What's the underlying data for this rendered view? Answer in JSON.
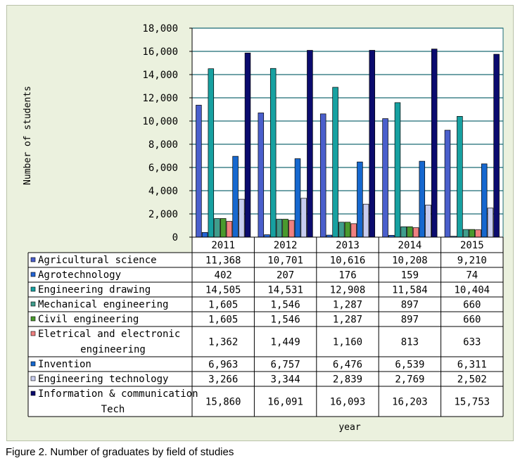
{
  "caption": "Figure 2. Number of graduates by field of studies",
  "chart_data": {
    "type": "bar",
    "title": "",
    "xlabel": "year",
    "ylabel": "Number of students",
    "ylim": [
      0,
      18000
    ],
    "yticks": [
      0,
      2000,
      4000,
      6000,
      8000,
      10000,
      12000,
      14000,
      16000,
      18000
    ],
    "ytick_labels": [
      "0",
      "2,000",
      "4,000",
      "6,000",
      "8,000",
      "10,000",
      "12,000",
      "14,000",
      "16,000",
      "18,000"
    ],
    "grid": true,
    "legend": "data-table-below",
    "categories": [
      "2011",
      "2012",
      "2013",
      "2014",
      "2015"
    ],
    "series": [
      {
        "name": "Agricultural science",
        "label": [
          "Agricultural science"
        ],
        "color": "#4a5fcc",
        "values": [
          11368,
          10701,
          10616,
          10208,
          9210
        ],
        "labels": [
          "11,368",
          "10,701",
          "10,616",
          "10,208",
          "9,210"
        ]
      },
      {
        "name": "Agrotechnology",
        "label": [
          "Agrotechnology"
        ],
        "color": "#2464d4",
        "values": [
          402,
          207,
          176,
          159,
          74
        ],
        "labels": [
          "402",
          "207",
          "176",
          "159",
          "74"
        ]
      },
      {
        "name": "Engineering drawing",
        "label": [
          "Engineering drawing"
        ],
        "color": "#17a1a1",
        "values": [
          14505,
          14531,
          12908,
          11584,
          10404
        ],
        "labels": [
          "14,505",
          "14,531",
          "12,908",
          "11,584",
          "10,404"
        ]
      },
      {
        "name": "Mechanical engineering",
        "label": [
          "Mechanical engineering"
        ],
        "color": "#3f9d8c",
        "values": [
          1605,
          1546,
          1287,
          897,
          660
        ],
        "labels": [
          "1,605",
          "1,546",
          "1,287",
          "897",
          "660"
        ]
      },
      {
        "name": "Civil engineering",
        "label": [
          "Civil engineering"
        ],
        "color": "#4a9a2e",
        "values": [
          1605,
          1546,
          1287,
          897,
          660
        ],
        "labels": [
          "1,605",
          "1,546",
          "1,287",
          "897",
          "660"
        ]
      },
      {
        "name": "Eletrical and electronic engineering",
        "label": [
          "Eletrical and electronic",
          "engineering"
        ],
        "color": "#f08080",
        "values": [
          1362,
          1449,
          1160,
          813,
          633
        ],
        "labels": [
          "1,362",
          "1,449",
          "1,160",
          "813",
          "633"
        ]
      },
      {
        "name": "Invention",
        "label": [
          "Invention"
        ],
        "color": "#1668cf",
        "values": [
          6963,
          6757,
          6476,
          6539,
          6311
        ],
        "labels": [
          "6,963",
          "6,757",
          "6,476",
          "6,539",
          "6,311"
        ]
      },
      {
        "name": "Engineering technology",
        "label": [
          "Engineering technology"
        ],
        "color": "#c8cdf0",
        "values": [
          3266,
          3344,
          2839,
          2769,
          2502
        ],
        "labels": [
          "3,266",
          "3,344",
          "2,839",
          "2,769",
          "2,502"
        ]
      },
      {
        "name": "Information & communication Tech",
        "label": [
          "Information & communication",
          "Tech"
        ],
        "color": "#0b0b6e",
        "values": [
          15860,
          16091,
          16093,
          16203,
          15753
        ],
        "labels": [
          "15,860",
          "16,091",
          "16,093",
          "16,203",
          "15,753"
        ]
      }
    ]
  }
}
